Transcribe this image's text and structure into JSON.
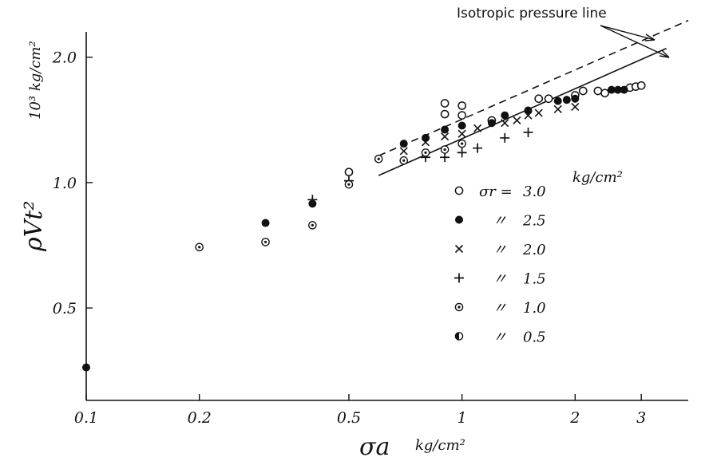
{
  "chart_data": {
    "type": "scatter",
    "title": "",
    "x_scale": "log",
    "y_scale": "log",
    "xlim": [
      0.1,
      4.0
    ],
    "ylim": [
      0.3,
      2.3
    ],
    "x_ticks": [
      0.1,
      0.2,
      0.5,
      1,
      2,
      3
    ],
    "x_tick_labels": [
      "0.1",
      "0.2",
      "0.5",
      "1",
      "2",
      "3"
    ],
    "y_ticks": [
      0.5,
      1.0,
      2.0
    ],
    "y_tick_labels": [
      "0.5",
      "1.0",
      "2.0"
    ],
    "xlabel": "σa",
    "xlabel_unit": "kg/cm²",
    "ylabel": "ρVt²",
    "ylabel_unit": "10³ kg/cm²",
    "grid": false,
    "annotation": "Isotropic pressure line",
    "legend_placement": "right, inside",
    "legend_prefix": "σr =",
    "legend_unit": "kg/cm²",
    "legend_ditto": "〃",
    "series": [
      {
        "name": "3.0",
        "marker": "open-circle",
        "points": [
          [
            0.5,
            1.06
          ],
          [
            0.9,
            1.55
          ],
          [
            0.9,
            1.46
          ],
          [
            1.0,
            1.53
          ],
          [
            1.0,
            1.45
          ],
          [
            1.2,
            1.41
          ],
          [
            1.6,
            1.59
          ],
          [
            1.7,
            1.59
          ],
          [
            2.0,
            1.62
          ],
          [
            2.1,
            1.66
          ],
          [
            2.3,
            1.66
          ],
          [
            2.4,
            1.64
          ],
          [
            2.8,
            1.69
          ],
          [
            2.9,
            1.7
          ],
          [
            3.0,
            1.71
          ]
        ]
      },
      {
        "name": "2.5",
        "marker": "filled-circle",
        "points": [
          [
            0.1,
            0.36
          ],
          [
            0.3,
            0.8
          ],
          [
            0.4,
            0.89
          ],
          [
            0.7,
            1.24
          ],
          [
            0.8,
            1.28
          ],
          [
            0.9,
            1.34
          ],
          [
            1.0,
            1.37
          ],
          [
            1.2,
            1.39
          ],
          [
            1.3,
            1.45
          ],
          [
            1.5,
            1.49
          ],
          [
            1.8,
            1.57
          ],
          [
            1.9,
            1.58
          ],
          [
            2.0,
            1.59
          ],
          [
            2.5,
            1.67
          ],
          [
            2.6,
            1.67
          ],
          [
            2.7,
            1.67
          ]
        ]
      },
      {
        "name": "2.0",
        "marker": "cross",
        "points": [
          [
            0.7,
            1.19
          ],
          [
            0.8,
            1.25
          ],
          [
            0.9,
            1.29
          ],
          [
            1.0,
            1.31
          ],
          [
            1.1,
            1.35
          ],
          [
            1.3,
            1.39
          ],
          [
            1.4,
            1.41
          ],
          [
            1.5,
            1.45
          ],
          [
            1.6,
            1.47
          ],
          [
            1.8,
            1.5
          ],
          [
            2.0,
            1.52
          ]
        ]
      },
      {
        "name": "1.5",
        "marker": "plus",
        "points": [
          [
            0.4,
            0.91
          ],
          [
            0.5,
            1.01
          ],
          [
            0.8,
            1.15
          ],
          [
            0.9,
            1.15
          ],
          [
            1.0,
            1.18
          ],
          [
            1.1,
            1.21
          ],
          [
            1.3,
            1.28
          ],
          [
            1.5,
            1.32
          ]
        ]
      },
      {
        "name": "1.0",
        "marker": "dotted-circle",
        "points": [
          [
            0.2,
            0.7
          ],
          [
            0.3,
            0.72
          ],
          [
            0.4,
            0.79
          ],
          [
            0.5,
            0.99
          ],
          [
            0.6,
            1.14
          ],
          [
            0.7,
            1.13
          ],
          [
            0.8,
            1.18
          ],
          [
            0.9,
            1.2
          ],
          [
            1.0,
            1.24
          ]
        ]
      },
      {
        "name": "0.5",
        "marker": "half-filled-circle",
        "points": []
      }
    ],
    "lines": [
      {
        "style": "solid",
        "x": [
          0.6,
          3.5
        ],
        "y": [
          1.04,
          2.1
        ]
      },
      {
        "style": "dashed",
        "x": [
          0.6,
          4.0
        ],
        "y": [
          1.16,
          2.45
        ]
      }
    ]
  }
}
